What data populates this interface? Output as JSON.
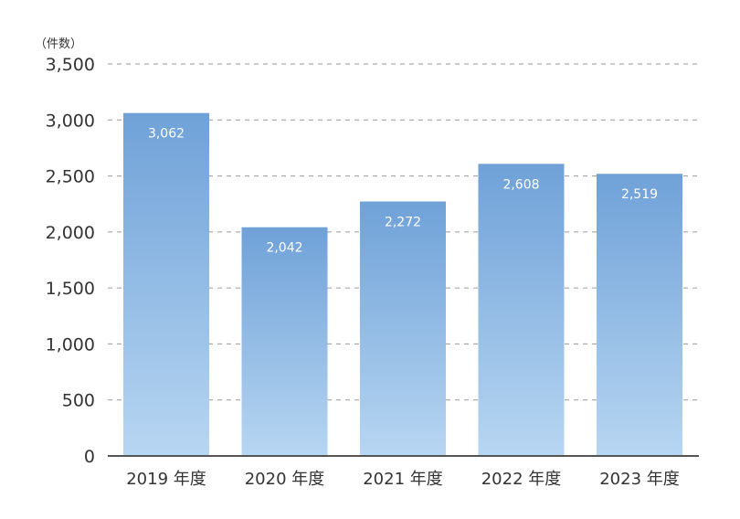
{
  "chart_data": {
    "type": "bar",
    "unit_label": "（件数）",
    "categories": [
      "2019 年度",
      "2020 年度",
      "2021 年度",
      "2022 年度",
      "2023 年度"
    ],
    "values": [
      3062,
      2042,
      2272,
      2608,
      2519
    ],
    "value_labels": [
      "3,062",
      "2,042",
      "2,272",
      "2,608",
      "2,519"
    ],
    "yticks": [
      0,
      500,
      1000,
      1500,
      2000,
      2500,
      3000,
      3500
    ],
    "ytick_labels": [
      "0",
      "500",
      "1,000",
      "1,500",
      "2,000",
      "2,500",
      "3,000",
      "3,500"
    ],
    "ylim": [
      0,
      3500
    ],
    "grid": true,
    "colors": {
      "bar_top": "#6fa1d8",
      "bar_bottom": "#b7d6f2"
    }
  }
}
